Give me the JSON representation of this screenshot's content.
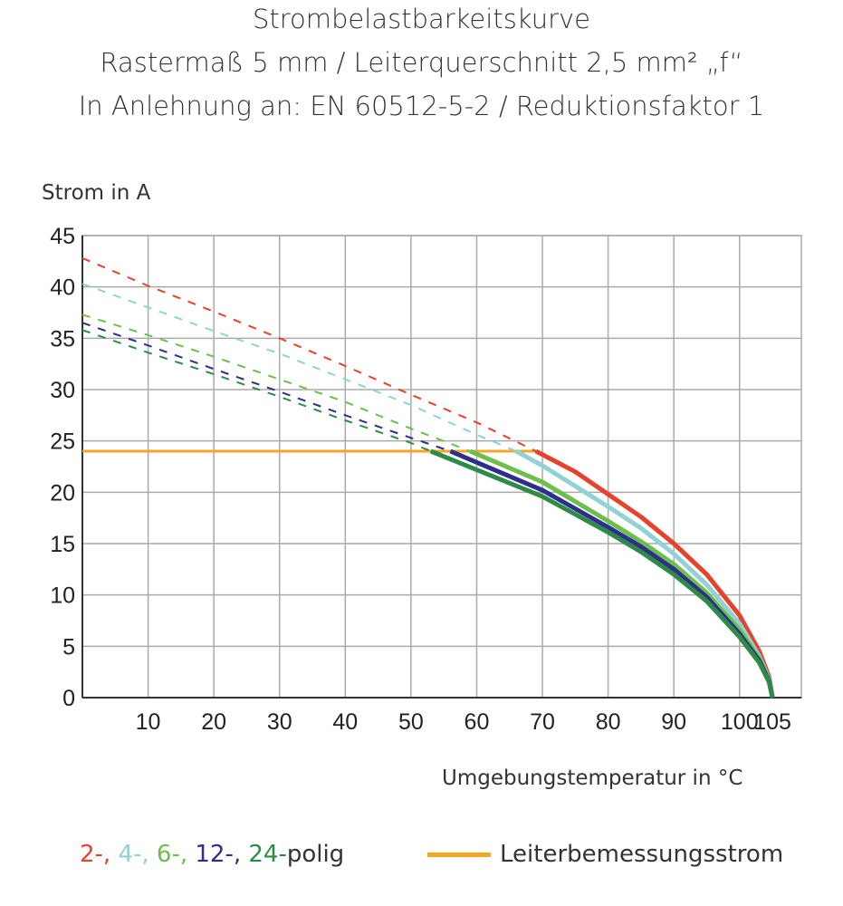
{
  "chart_data": {
    "type": "line",
    "title": [
      "Strombelastbarkeitskurve",
      "Rastermaß 5 mm / Leiterquerschnitt 2,5 mm² „f“",
      "In Anlehnung an: EN 60512-5-2 / Reduktionsfaktor 1"
    ],
    "xlabel": "Umgebungstemperatur in °C",
    "ylabel": "Strom in A",
    "xlim": [
      0,
      109.4
    ],
    "ylim": [
      0,
      45
    ],
    "xticks": [
      10,
      20,
      30,
      40,
      50,
      60,
      70,
      80,
      90,
      100,
      105
    ],
    "yticks": [
      0,
      5,
      10,
      15,
      20,
      25,
      30,
      35,
      40,
      45
    ],
    "grid": true,
    "legend_position": "bottom",
    "series": [
      {
        "label": "2-",
        "color": "#e8412c",
        "dashed": [
          [
            0,
            42.8
          ],
          [
            10,
            40.1
          ],
          [
            20,
            37.6
          ],
          [
            30,
            35
          ],
          [
            40,
            32.3
          ],
          [
            50,
            29.5
          ],
          [
            60,
            26.8
          ],
          [
            69,
            24
          ]
        ],
        "solid": [
          [
            69,
            24
          ],
          [
            75,
            22
          ],
          [
            80,
            19.8
          ],
          [
            85,
            17.6
          ],
          [
            90,
            15
          ],
          [
            95,
            12
          ],
          [
            100,
            8
          ],
          [
            103,
            4.5
          ],
          [
            104.5,
            2
          ],
          [
            105,
            0
          ]
        ]
      },
      {
        "label": "4-",
        "color": "#8fd3d6",
        "dashed": [
          [
            0,
            40.3
          ],
          [
            10,
            38
          ],
          [
            20,
            35.7
          ],
          [
            30,
            33.5
          ],
          [
            40,
            31
          ],
          [
            50,
            28.5
          ],
          [
            60,
            25.6
          ],
          [
            66,
            24
          ]
        ],
        "solid": [
          [
            66,
            24
          ],
          [
            70,
            22.6
          ],
          [
            80,
            18.6
          ],
          [
            85,
            16.5
          ],
          [
            90,
            14
          ],
          [
            95,
            11
          ],
          [
            100,
            7.2
          ],
          [
            103,
            4
          ],
          [
            104.5,
            1.8
          ],
          [
            105,
            0
          ]
        ]
      },
      {
        "label": "6-",
        "color": "#6cbf4b",
        "dashed": [
          [
            0,
            37.3
          ],
          [
            10,
            35.3
          ],
          [
            20,
            33.2
          ],
          [
            30,
            31
          ],
          [
            40,
            28.8
          ],
          [
            50,
            26.2
          ],
          [
            59,
            24
          ]
        ],
        "solid": [
          [
            59,
            24
          ],
          [
            70,
            21
          ],
          [
            80,
            17.2
          ],
          [
            85,
            15.2
          ],
          [
            90,
            13
          ],
          [
            95,
            10.2
          ],
          [
            100,
            6.6
          ],
          [
            103,
            3.8
          ],
          [
            104.5,
            1.7
          ],
          [
            105,
            0
          ]
        ]
      },
      {
        "label": "12-",
        "color": "#2e2f8c",
        "dashed": [
          [
            0,
            36.5
          ],
          [
            10,
            34.3
          ],
          [
            20,
            32
          ],
          [
            30,
            29.8
          ],
          [
            40,
            27.5
          ],
          [
            50,
            25.3
          ],
          [
            56,
            24
          ]
        ],
        "solid": [
          [
            56,
            24
          ],
          [
            70,
            20.2
          ],
          [
            80,
            16.6
          ],
          [
            85,
            14.7
          ],
          [
            90,
            12.5
          ],
          [
            95,
            9.8
          ],
          [
            100,
            6.2
          ],
          [
            103,
            3.6
          ],
          [
            104.5,
            1.6
          ],
          [
            105,
            0
          ]
        ]
      },
      {
        "label": "24-",
        "color": "#2e8b47",
        "dashed": [
          [
            0,
            35.8
          ],
          [
            10,
            33.6
          ],
          [
            20,
            31.5
          ],
          [
            30,
            29.3
          ],
          [
            40,
            27
          ],
          [
            50,
            24.8
          ],
          [
            53,
            24
          ]
        ],
        "solid": [
          [
            53,
            24
          ],
          [
            70,
            19.6
          ],
          [
            80,
            16.1
          ],
          [
            85,
            14.2
          ],
          [
            90,
            12
          ],
          [
            95,
            9.4
          ],
          [
            100,
            5.9
          ],
          [
            103,
            3.4
          ],
          [
            104.5,
            1.5
          ],
          [
            105,
            0
          ]
        ]
      }
    ],
    "reference_line": {
      "label": "Leiterbemessungsstrom",
      "color": "#f5a623",
      "y": 24,
      "x": [
        0,
        69
      ]
    },
    "legend": {
      "series_suffix": "polig",
      "separator": ", "
    }
  }
}
